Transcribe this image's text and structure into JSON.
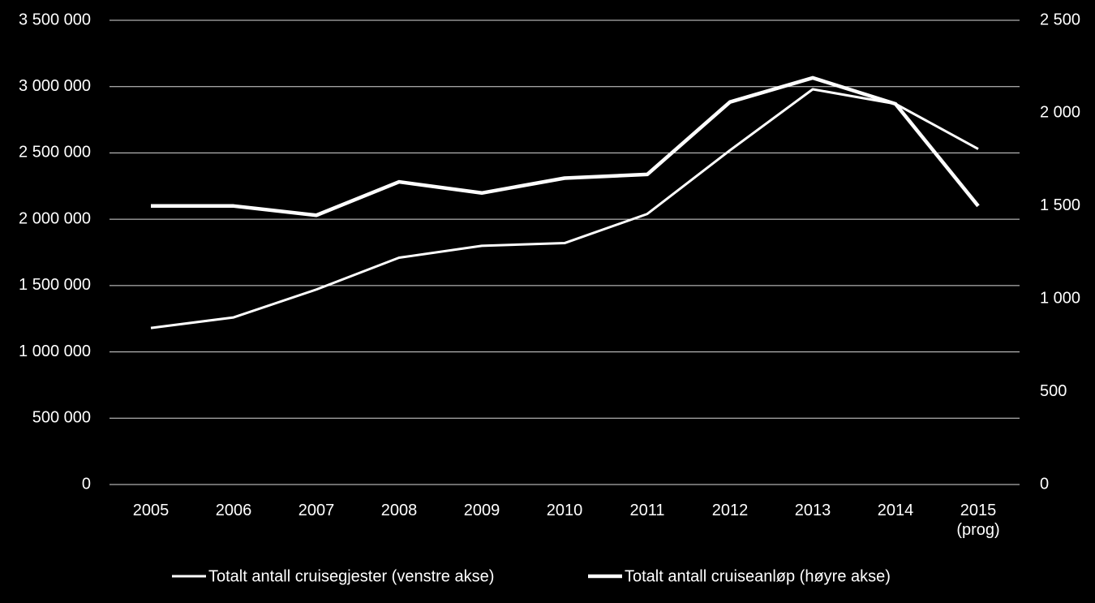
{
  "chart_data": {
    "type": "line",
    "categories": [
      "2005",
      "2006",
      "2007",
      "2008",
      "2009",
      "2010",
      "2011",
      "2012",
      "2013",
      "2014",
      "2015 (prog)"
    ],
    "series": [
      {
        "name": "Totalt antall cruisegjester (venstre akse)",
        "color": "#ffffff",
        "axis": "y",
        "values": [
          1180000,
          1260000,
          1470000,
          1710000,
          1800000,
          1820000,
          2040000,
          2520000,
          2980000,
          2870000,
          2530000
        ]
      },
      {
        "name": "Totalt antall cruiseanløp (høyre akse)",
        "color": "#ffffff",
        "axis": "y2",
        "values": [
          1500,
          1500,
          1450,
          1630,
          1570,
          1650,
          1670,
          2060,
          2190,
          2050,
          1500
        ]
      }
    ],
    "ylim": [
      0,
      3500000
    ],
    "yticks": [
      0,
      {
        "value": 500000,
        "label": "500 000"
      },
      {
        "value": 1000000,
        "label": "1 000 000"
      },
      {
        "value": 1500000,
        "label": "1 500 000"
      },
      {
        "value": 2000000,
        "label": "2 000 000"
      },
      {
        "value": 2500000,
        "label": "2 500 000"
      },
      {
        "value": 3000000,
        "label": "3 000 000"
      },
      {
        "value": 3500000,
        "label": "3 500 000"
      }
    ],
    "y2lim": [
      0,
      2500
    ],
    "y2ticks": [
      0,
      500,
      {
        "value": 1000,
        "label": "1 000"
      },
      {
        "value": 1500,
        "label": "1 500"
      },
      {
        "value": 2000,
        "label": "2 000"
      },
      {
        "value": 2500,
        "label": "2 500"
      }
    ],
    "grid": true,
    "legend": "bottom"
  }
}
